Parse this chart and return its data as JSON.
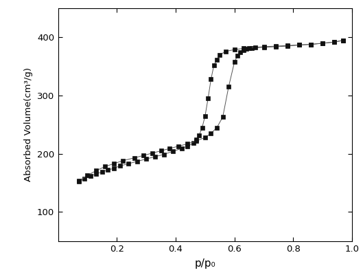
{
  "adsorption_x": [
    0.07,
    0.09,
    0.11,
    0.13,
    0.15,
    0.17,
    0.19,
    0.21,
    0.24,
    0.27,
    0.3,
    0.33,
    0.36,
    0.39,
    0.42,
    0.44,
    0.46,
    0.47,
    0.48,
    0.49,
    0.5,
    0.51,
    0.52,
    0.53,
    0.54,
    0.55,
    0.57,
    0.6,
    0.63,
    0.66,
    0.7,
    0.74,
    0.78,
    0.82,
    0.86,
    0.9,
    0.94,
    0.97
  ],
  "adsorption_y": [
    152,
    157,
    162,
    165,
    169,
    172,
    175,
    179,
    183,
    187,
    191,
    195,
    199,
    204,
    209,
    213,
    218,
    224,
    232,
    245,
    265,
    295,
    328,
    352,
    362,
    370,
    376,
    379,
    381,
    382,
    383,
    384,
    385,
    387,
    388,
    390,
    392,
    395
  ],
  "desorption_x": [
    0.97,
    0.94,
    0.9,
    0.86,
    0.82,
    0.78,
    0.74,
    0.7,
    0.67,
    0.65,
    0.64,
    0.63,
    0.62,
    0.61,
    0.6,
    0.58,
    0.56,
    0.54,
    0.52,
    0.5,
    0.47,
    0.44,
    0.41,
    0.38,
    0.35,
    0.32,
    0.29,
    0.26,
    0.22,
    0.19,
    0.16,
    0.13,
    0.1,
    0.07
  ],
  "desorption_y": [
    395,
    392,
    390,
    388,
    387,
    386,
    385,
    384,
    383,
    382,
    380,
    378,
    374,
    368,
    358,
    315,
    263,
    245,
    235,
    228,
    222,
    217,
    213,
    209,
    205,
    201,
    197,
    193,
    188,
    183,
    178,
    171,
    163,
    153
  ],
  "xlabel": "p/p₀",
  "ylabel": "Absorbed Volume(cm³/g)",
  "xlim": [
    0.0,
    1.0
  ],
  "ylim": [
    50,
    450
  ],
  "xticks": [
    0.2,
    0.4,
    0.6,
    0.8,
    1.0
  ],
  "yticks": [
    100,
    200,
    300,
    400
  ],
  "marker": "s",
  "marker_size": 4.5,
  "line_color": "#555555",
  "marker_color": "#111111",
  "background_color": "#ffffff",
  "figure_width": 5.29,
  "figure_height": 4.03,
  "dpi": 100
}
